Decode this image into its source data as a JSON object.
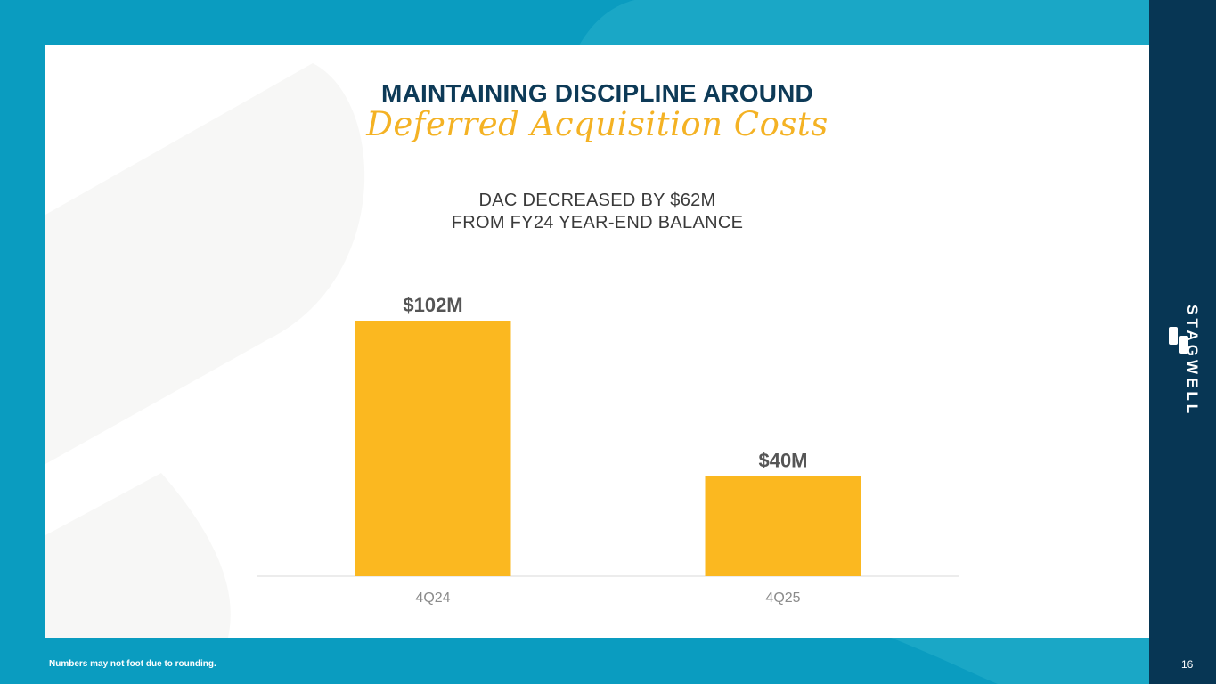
{
  "slide": {
    "title": "MAINTAINING DISCIPLINE AROUND",
    "subtitle": "Deferred Acquisition Costs",
    "headline_line1": "DAC DECREASED BY $62M",
    "headline_line2": "FROM FY24 YEAR-END BALANCE",
    "footnote": "Numbers may not foot due to rounding.",
    "page_number": "16",
    "brand": "STAGWELL"
  },
  "colors": {
    "bar": "#fbb820",
    "title": "#0d3a57",
    "subtitle": "#f4b224",
    "background": "#0a9cc0",
    "side_bar": "#073654"
  },
  "icons": [
    "stagwell-logo-icon"
  ],
  "chart_data": {
    "type": "bar",
    "title": "",
    "xlabel": "",
    "ylabel": "",
    "categories": [
      "4Q24",
      "4Q25"
    ],
    "values": [
      102,
      40
    ],
    "data_labels": [
      "$102M",
      "$40M"
    ],
    "ylim": [
      0,
      102
    ],
    "grid": false,
    "legend": "none"
  }
}
